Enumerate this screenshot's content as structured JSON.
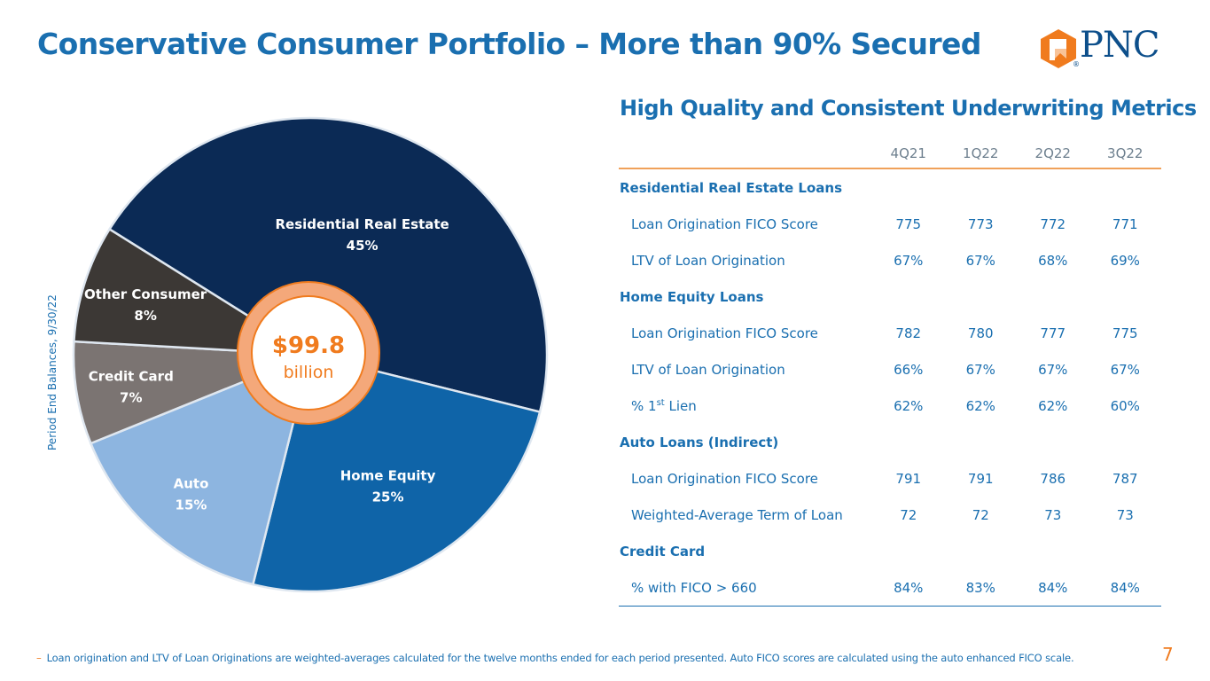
{
  "title": "Conservative Consumer Portfolio – More than 90% Secured",
  "logo": {
    "text": "PNC",
    "registered": "®"
  },
  "side_label": "Period End Balances, 9/30/22",
  "chart_data": {
    "type": "pie",
    "style": "donut",
    "center": {
      "value": "$99.8",
      "unit": "billion"
    },
    "slices": [
      {
        "name": "Residential Real Estate",
        "value": 45,
        "label": "45%",
        "color": "#0b2a55"
      },
      {
        "name": "Home Equity",
        "value": 25,
        "label": "25%",
        "color": "#0f64a8"
      },
      {
        "name": "Auto",
        "value": 15,
        "label": "15%",
        "color": "#8db5e0"
      },
      {
        "name": "Credit Card",
        "value": 7,
        "label": "7%",
        "color": "#7b7472"
      },
      {
        "name": "Other Consumer",
        "value": 8,
        "label": "8%",
        "color": "#3c3835"
      }
    ]
  },
  "table": {
    "title": "High Quality and Consistent Underwriting Metrics",
    "columns": [
      "4Q21",
      "1Q22",
      "2Q22",
      "3Q22"
    ],
    "sections": [
      {
        "name": "Residential Real Estate Loans",
        "rows": [
          {
            "label": "Loan Origination FICO Score",
            "values": [
              "775",
              "773",
              "772",
              "771"
            ]
          },
          {
            "label": "LTV of Loan Origination",
            "values": [
              "67%",
              "67%",
              "68%",
              "69%"
            ]
          }
        ]
      },
      {
        "name": "Home Equity Loans",
        "rows": [
          {
            "label": "Loan Origination FICO Score",
            "values": [
              "782",
              "780",
              "777",
              "775"
            ]
          },
          {
            "label": "LTV of Loan Origination",
            "values": [
              "66%",
              "67%",
              "67%",
              "67%"
            ]
          },
          {
            "label_pre": "% 1",
            "label_sup": "st",
            "label_post": " Lien",
            "values": [
              "62%",
              "62%",
              "62%",
              "60%"
            ]
          }
        ]
      },
      {
        "name": "Auto Loans (Indirect)",
        "rows": [
          {
            "label": "Loan Origination FICO Score",
            "values": [
              "791",
              "791",
              "786",
              "787"
            ]
          },
          {
            "label": "Weighted-Average Term of Loan",
            "values": [
              "72",
              "72",
              "73",
              "73"
            ]
          }
        ]
      },
      {
        "name": "Credit Card",
        "rows": [
          {
            "label": "% with FICO > 660",
            "values": [
              "84%",
              "83%",
              "84%",
              "84%"
            ]
          }
        ]
      }
    ]
  },
  "footnote": {
    "dash": "–",
    "text": "Loan origination and LTV of Loan Originations are weighted-averages calculated for the twelve months ended for each period presented. Auto FICO scores are calculated using the auto enhanced FICO scale."
  },
  "page_number": "7",
  "colors": {
    "brand_blue": "#1a6fb0",
    "accent_orange": "#f07b1e",
    "ring_fill": "#f4a87a",
    "navy": "#0d4f8b"
  }
}
